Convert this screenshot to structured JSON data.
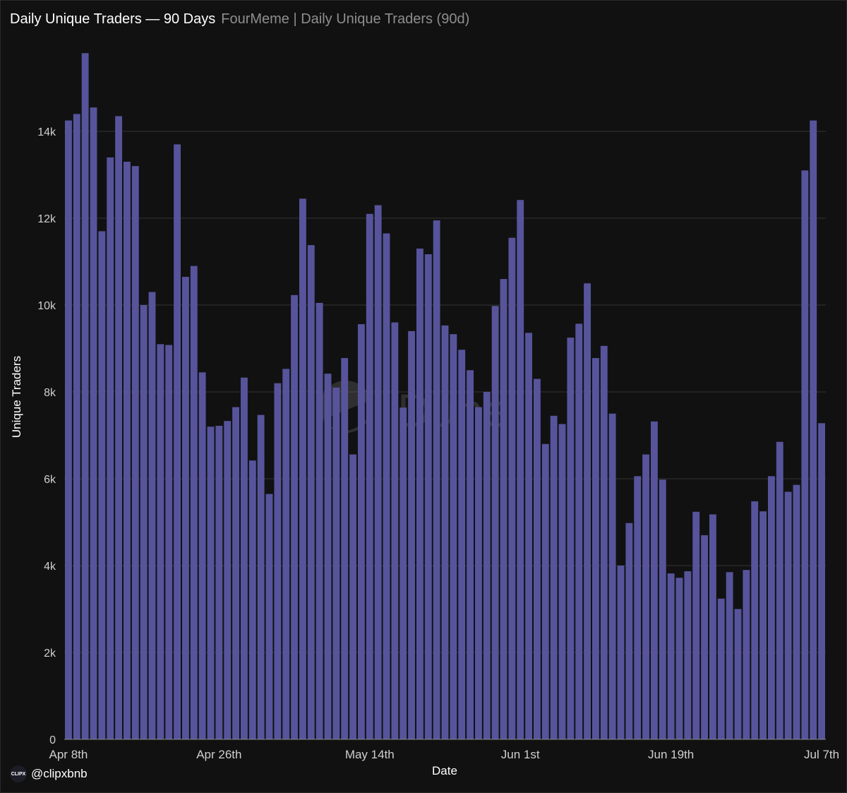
{
  "header": {
    "title": "Daily Unique Traders — 90 Days",
    "subtitle": "FourMeme | Daily Unique Traders (90d)"
  },
  "watermark": "Dune",
  "credit": {
    "logo_text": "CLIPX",
    "handle": "@clipxbnb"
  },
  "colors": {
    "bar": "#57549c",
    "grid": "#333333",
    "text": "#cfcfcf",
    "background": "#111111"
  },
  "chart_data": {
    "type": "bar",
    "xlabel": "Date",
    "ylabel": "Unique Traders",
    "ylim": [
      0,
      16000
    ],
    "yticks": [
      0,
      2000,
      4000,
      6000,
      8000,
      10000,
      12000,
      14000
    ],
    "ytick_labels": [
      "0",
      "2k",
      "4k",
      "6k",
      "8k",
      "10k",
      "12k",
      "14k"
    ],
    "x_tick_labels": [
      {
        "index": 0,
        "label": "Apr 8th"
      },
      {
        "index": 18,
        "label": "Apr 26th"
      },
      {
        "index": 36,
        "label": "May 14th"
      },
      {
        "index": 54,
        "label": "Jun 1st"
      },
      {
        "index": 72,
        "label": "Jun 19th"
      },
      {
        "index": 90,
        "label": "Jul 7th"
      }
    ],
    "grid": true,
    "categories": [
      "Apr 8",
      "Apr 9",
      "Apr 10",
      "Apr 11",
      "Apr 12",
      "Apr 13",
      "Apr 14",
      "Apr 15",
      "Apr 16",
      "Apr 17",
      "Apr 18",
      "Apr 19",
      "Apr 20",
      "Apr 21",
      "Apr 22",
      "Apr 23",
      "Apr 24",
      "Apr 25",
      "Apr 26",
      "Apr 27",
      "Apr 28",
      "Apr 29",
      "Apr 30",
      "May 1",
      "May 2",
      "May 3",
      "May 4",
      "May 5",
      "May 6",
      "May 7",
      "May 8",
      "May 9",
      "May 10",
      "May 11",
      "May 12",
      "May 13",
      "May 14",
      "May 15",
      "May 16",
      "May 17",
      "May 18",
      "May 19",
      "May 20",
      "May 21",
      "May 22",
      "May 23",
      "May 24",
      "May 25",
      "May 26",
      "May 27",
      "May 28",
      "May 29",
      "May 30",
      "May 31",
      "Jun 1",
      "Jun 2",
      "Jun 3",
      "Jun 4",
      "Jun 5",
      "Jun 6",
      "Jun 7",
      "Jun 8",
      "Jun 9",
      "Jun 10",
      "Jun 11",
      "Jun 12",
      "Jun 13",
      "Jun 14",
      "Jun 15",
      "Jun 16",
      "Jun 17",
      "Jun 18",
      "Jun 19",
      "Jun 20",
      "Jun 21",
      "Jun 22",
      "Jun 23",
      "Jun 24",
      "Jun 25",
      "Jun 26",
      "Jun 27",
      "Jun 28",
      "Jun 29",
      "Jun 30",
      "Jul 1",
      "Jul 2",
      "Jul 3",
      "Jul 4",
      "Jul 5",
      "Jul 6",
      "Jul 7"
    ],
    "values": [
      14250,
      14400,
      15800,
      14550,
      11700,
      13400,
      14350,
      13300,
      13200,
      10000,
      10300,
      9100,
      9080,
      13700,
      10650,
      10900,
      8450,
      7200,
      7220,
      7330,
      7650,
      8330,
      6420,
      7470,
      5650,
      8200,
      8530,
      10230,
      12450,
      11380,
      10050,
      8420,
      8100,
      8780,
      6560,
      9560,
      12100,
      12300,
      11650,
      9600,
      7640,
      9400,
      11300,
      11170,
      11950,
      9530,
      9330,
      8970,
      8500,
      7650,
      8000,
      9980,
      10600,
      11550,
      12420,
      9360,
      8300,
      6800,
      7450,
      7260,
      9250,
      9570,
      10500,
      8780,
      9060,
      7500,
      4000,
      4980,
      6060,
      6560,
      7320,
      5980,
      3820,
      3720,
      3870,
      5240,
      4700,
      5180,
      3240,
      3850,
      3000,
      3900,
      5480,
      5250,
      6060,
      6850,
      5700,
      5860,
      13100,
      14250,
      7280
    ]
  }
}
